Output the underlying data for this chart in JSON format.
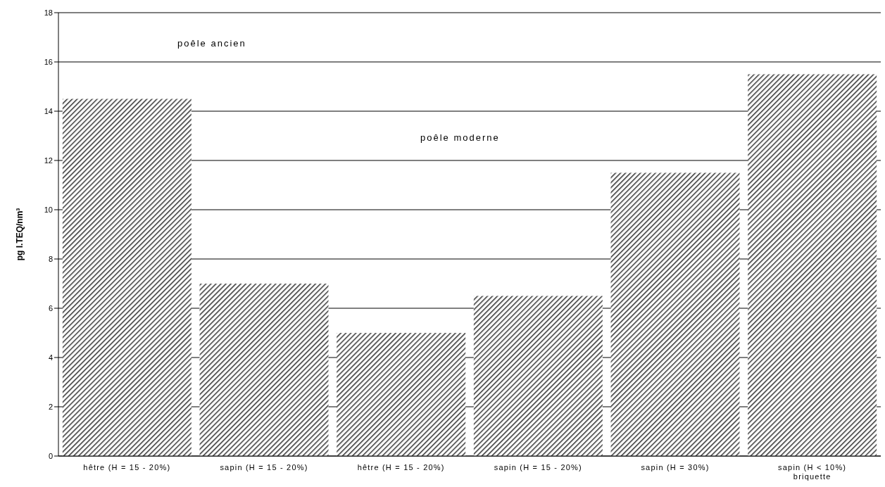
{
  "chart_data": {
    "type": "bar",
    "ylabel": "pg I.TEQ/nm³",
    "categories": [
      "hêtre (H = 15 - 20%)",
      "sapin (H = 15 - 20%)",
      "hêtre (H = 15 - 20%)",
      "sapin (H = 15 - 20%)",
      "sapin (H = 30%)",
      "sapin (H < 10%)\nbriquette"
    ],
    "values": [
      14.5,
      7,
      5,
      6.5,
      11.5,
      15.5
    ],
    "color": "#333333",
    "ylim": [
      0,
      18
    ],
    "yticks": [
      0,
      2,
      4,
      6,
      8,
      10,
      12,
      14,
      16,
      18
    ],
    "grid": "y",
    "annotations": [
      "poêle ancien",
      "poêle moderne"
    ]
  }
}
